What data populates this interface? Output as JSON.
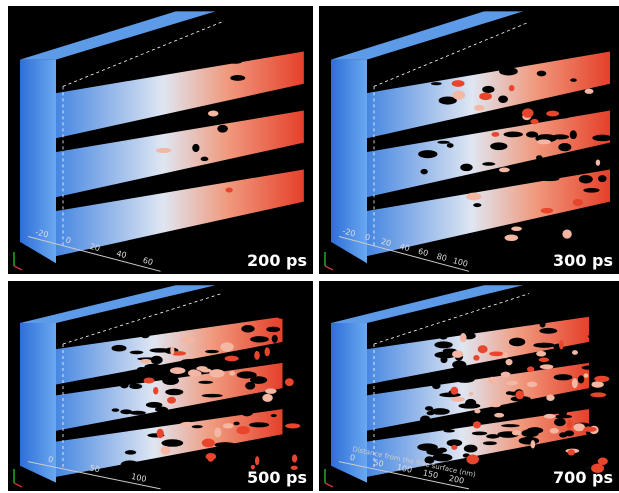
{
  "panels": [
    {
      "time_label": "200 ps",
      "axis_ticks": [
        "-20",
        "0",
        "20",
        "40",
        "60"
      ]
    },
    {
      "time_label": "300 ps",
      "axis_ticks": [
        "-20",
        "0",
        "20",
        "40",
        "60",
        "80",
        "100"
      ]
    },
    {
      "time_label": "500 ps",
      "axis_ticks": [
        "0",
        "50",
        "100"
      ]
    },
    {
      "time_label": "700 ps",
      "axis_ticks": [
        "0",
        "50",
        "100",
        "150",
        "200"
      ],
      "axis_title": "Distance from the free surface (nm)"
    }
  ]
}
